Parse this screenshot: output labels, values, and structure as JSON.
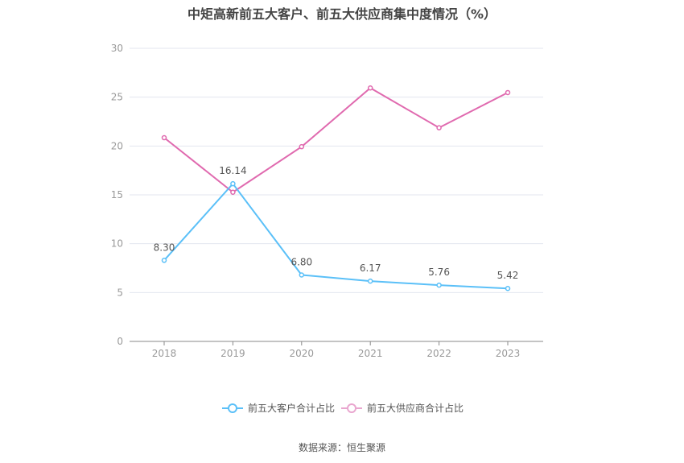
{
  "chart_data": {
    "type": "line",
    "title": "中矩高新前五大客户、前五大供应商集中度情况（%）",
    "categories": [
      "2018",
      "2019",
      "2020",
      "2021",
      "2022",
      "2023"
    ],
    "ylim": [
      0,
      30
    ],
    "yticks": [
      0,
      5,
      10,
      15,
      20,
      25,
      30
    ],
    "grid": true,
    "legend": "bottom",
    "series": [
      {
        "name": "前五大客户合计占比",
        "color": "#5bc0f8",
        "values": [
          8.3,
          16.14,
          6.8,
          6.17,
          5.76,
          5.42
        ],
        "labels": [
          "8.30",
          "16.14",
          "6.80",
          "6.17",
          "5.76",
          "5.42"
        ]
      },
      {
        "name": "前五大供应商合计占比",
        "color": "#e06aaf",
        "values": [
          20.85,
          15.27,
          19.93,
          25.94,
          21.87,
          25.47
        ]
      }
    ]
  },
  "source": "数据来源：恒生聚源"
}
